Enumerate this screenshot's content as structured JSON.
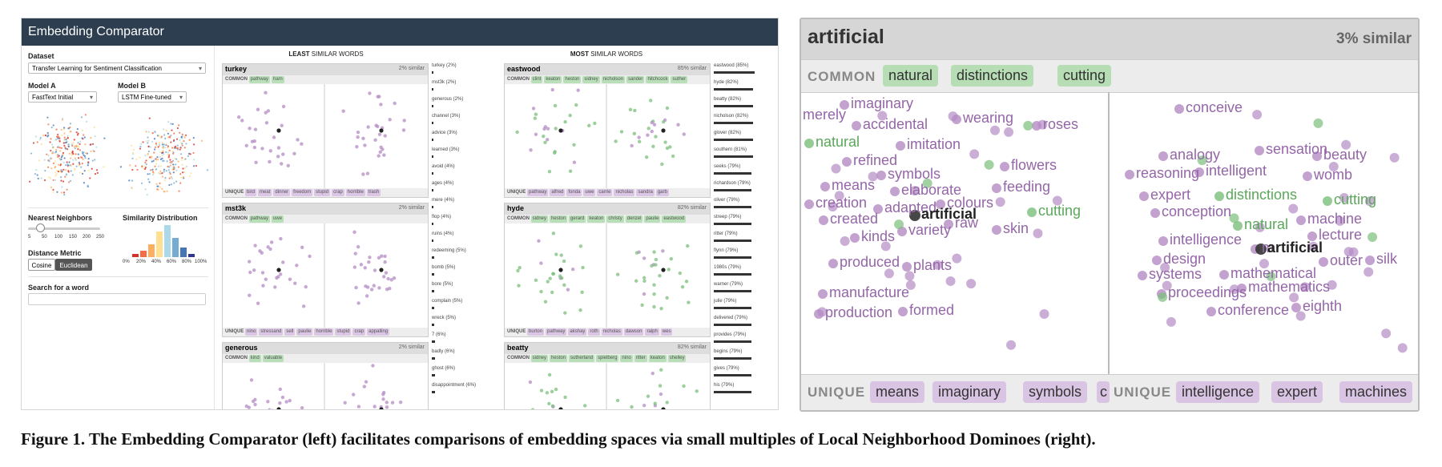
{
  "app": {
    "title": "Embedding Comparator",
    "dataset_label": "Dataset",
    "dataset_value": "Transfer Learning for Sentiment Classification",
    "model_a_label": "Model A",
    "model_a_value": "FastText Initial",
    "model_b_label": "Model B",
    "model_b_value": "LSTM Fine-tuned",
    "nn_label": "Nearest Neighbors",
    "nn_ticks": [
      "5",
      "50",
      "100",
      "150",
      "200",
      "250"
    ],
    "sim_label": "Similarity Distribution",
    "sim_ticks": [
      "0%",
      "20%",
      "40%",
      "60%",
      "80%",
      "100%"
    ],
    "sim_hist": [
      1,
      2,
      4,
      8,
      10,
      6,
      3,
      1
    ],
    "metric_label": "Distance Metric",
    "metric_cosine": "Cosine",
    "metric_euclidean": "Euclidean",
    "search_label": "Search for a word",
    "least_title_bold": "LEAST",
    "least_title_rest": " SIMILAR WORDS",
    "most_title_bold": "MOST",
    "most_title_rest": " SIMILAR WORDS",
    "common_label": "COMMON",
    "unique_label": "UNIQUE",
    "least_panels": [
      {
        "word": "turkey",
        "sim": "2% similar",
        "common": [
          "pathway",
          "ham"
        ],
        "uniqueA": [
          "bird",
          "meat",
          "dinner",
          "freedom"
        ],
        "uniqueB": [
          "stupid",
          "crap",
          "horrible",
          "trash"
        ]
      },
      {
        "word": "mst3k",
        "sim": "2% similar",
        "common": [
          "pathway",
          "uwe"
        ],
        "uniqueA": [
          "nino",
          "stressand",
          "sell",
          "paulie"
        ],
        "uniqueB": [
          "horrible",
          "stupid",
          "crap",
          "appalling"
        ]
      },
      {
        "word": "generous",
        "sim": "2% similar",
        "common": [
          "kind",
          "valuable"
        ],
        "uniqueA": [],
        "uniqueB": []
      }
    ],
    "most_panels": [
      {
        "word": "eastwood",
        "sim": "85% similar",
        "common": [
          "clint",
          "keaton",
          "heston",
          "sidney",
          "nicholson",
          "sander",
          "hitchcock",
          "suther"
        ],
        "uniqueA": [
          "pathway",
          "alfred",
          "fonda",
          "uwe"
        ],
        "uniqueB": [
          "carrie",
          "nicholas",
          "sandra",
          "garb"
        ]
      },
      {
        "word": "hyde",
        "sim": "82% similar",
        "common": [
          "sidney",
          "heston",
          "gerard",
          "keaton",
          "christy",
          "denzel",
          "paulie",
          "eastwood"
        ],
        "uniqueA": [
          "burton",
          "pathway",
          "akshay",
          "roth"
        ],
        "uniqueB": [
          "nicholas",
          "dawson",
          "ralph",
          "wes"
        ]
      },
      {
        "word": "beatty",
        "sim": "82% similar",
        "common": [
          "sidney",
          "heston",
          "sutherland",
          "spielberg",
          "nino",
          "ritter",
          "keaton",
          "shelley"
        ],
        "uniqueA": [],
        "uniqueB": []
      }
    ],
    "least_list": [
      "turkey (2%)",
      "mst3k (2%)",
      "generous (2%)",
      "channel (3%)",
      "advice (3%)",
      "learned (3%)",
      "avoid (4%)",
      "ages (4%)",
      "mere (4%)",
      "flop (4%)",
      "ruins (4%)",
      "redeeming (5%)",
      "bomb (5%)",
      "bore (5%)",
      "complain (5%)",
      "wreck (5%)",
      "7 (6%)",
      "badly (6%)",
      "ghost (6%)",
      "disappointment (6%)"
    ],
    "least_list_vals": [
      2,
      2,
      2,
      3,
      3,
      3,
      4,
      4,
      4,
      4,
      4,
      5,
      5,
      5,
      5,
      5,
      6,
      6,
      6,
      6
    ],
    "most_list": [
      "eastwood (85%)",
      "hyde (82%)",
      "beatty (82%)",
      "nicholson (82%)",
      "glover (82%)",
      "southern (81%)",
      "seeks (79%)",
      "richardson (79%)",
      "oliver (79%)",
      "streep (79%)",
      "ritter (79%)",
      "flynn (79%)",
      "1980s (79%)",
      "warner (79%)",
      "julie (79%)",
      "delivered (79%)",
      "provides (79%)",
      "begins (79%)",
      "gives (79%)",
      "his (79%)"
    ],
    "most_list_vals": [
      85,
      82,
      82,
      82,
      82,
      81,
      79,
      79,
      79,
      79,
      79,
      79,
      79,
      79,
      79,
      79,
      79,
      79,
      79,
      79
    ]
  },
  "domino": {
    "word": "artificial",
    "similarity": "3% similar",
    "common_label": "COMMON",
    "common": [
      "natural",
      "distinctions",
      "cutting"
    ],
    "unique_label": "UNIQUE",
    "uniqueA": [
      "means",
      "imaginary",
      "symbols",
      "c"
    ],
    "uniqueB": [
      "intelligence",
      "expert",
      "machines"
    ],
    "left_words": [
      {
        "t": "imaginary",
        "c": "p"
      },
      {
        "t": "merely",
        "c": "p"
      },
      {
        "t": "accidental",
        "c": "p"
      },
      {
        "t": "wearing",
        "c": "p"
      },
      {
        "t": "roses",
        "c": "p"
      },
      {
        "t": "natural",
        "c": "g"
      },
      {
        "t": "imitation",
        "c": "p"
      },
      {
        "t": "refined",
        "c": "p"
      },
      {
        "t": "symbols",
        "c": "p"
      },
      {
        "t": "flowers",
        "c": "p"
      },
      {
        "t": "means",
        "c": "p"
      },
      {
        "t": "elaborate",
        "c": "p"
      },
      {
        "t": "feeding",
        "c": "p"
      },
      {
        "t": "creation",
        "c": "p"
      },
      {
        "t": "adapted",
        "c": "p"
      },
      {
        "t": "colours",
        "c": "p"
      },
      {
        "t": "cutting",
        "c": "g"
      },
      {
        "t": "artificial",
        "c": "k"
      },
      {
        "t": "created",
        "c": "p"
      },
      {
        "t": "raw",
        "c": "p"
      },
      {
        "t": "variety",
        "c": "p"
      },
      {
        "t": "skin",
        "c": "p"
      },
      {
        "t": "kinds",
        "c": "p"
      },
      {
        "t": "produced",
        "c": "p"
      },
      {
        "t": "plants",
        "c": "p"
      },
      {
        "t": "manufacture",
        "c": "p"
      },
      {
        "t": "production",
        "c": "p"
      },
      {
        "t": "formed",
        "c": "p"
      }
    ],
    "right_words": [
      {
        "t": "conceive",
        "c": "p"
      },
      {
        "t": "analogy",
        "c": "p"
      },
      {
        "t": "sensation",
        "c": "p"
      },
      {
        "t": "beauty",
        "c": "p"
      },
      {
        "t": "reasoning",
        "c": "p"
      },
      {
        "t": "intelligent",
        "c": "p"
      },
      {
        "t": "womb",
        "c": "p"
      },
      {
        "t": "expert",
        "c": "p"
      },
      {
        "t": "distinctions",
        "c": "g"
      },
      {
        "t": "cutting",
        "c": "g"
      },
      {
        "t": "conception",
        "c": "p"
      },
      {
        "t": "machine",
        "c": "p"
      },
      {
        "t": "natural",
        "c": "g"
      },
      {
        "t": "lecture",
        "c": "p"
      },
      {
        "t": "intelligence",
        "c": "p"
      },
      {
        "t": "m",
        "c": "p"
      },
      {
        "t": "artificial",
        "c": "k"
      },
      {
        "t": "design",
        "c": "p"
      },
      {
        "t": "outer",
        "c": "p"
      },
      {
        "t": "silk",
        "c": "p"
      },
      {
        "t": "systems",
        "c": "p"
      },
      {
        "t": "mathematical",
        "c": "p"
      },
      {
        "t": "proceedings",
        "c": "p"
      },
      {
        "t": "mathematics",
        "c": "p"
      },
      {
        "t": "conference",
        "c": "p"
      },
      {
        "t": "eighth",
        "c": "p"
      }
    ]
  },
  "caption": "Figure 1. The Embedding Comparator (left) facilitates comparisons of embedding spaces via small multiples of Local Neighborhood Dominoes (right).",
  "colors": {
    "green": "#7bbf7b",
    "purple": "#b48bc4",
    "header": "#2c3e50"
  }
}
